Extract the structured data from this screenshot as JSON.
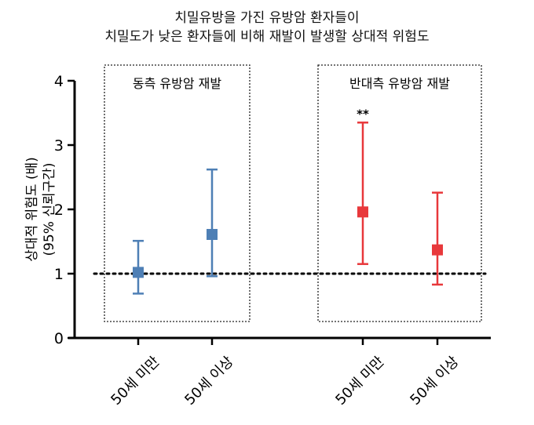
{
  "chart_data": {
    "type": "scatter",
    "title_lines": [
      "치밀유방을 가진 유방암 환자들이",
      "치밀도가 낮은 환자들에 비해 재발이 발생할 상대적 위험도"
    ],
    "ylabel_lines": [
      "상대적 위험도 (배)",
      "(95% 신뢰구간)"
    ],
    "ylim": [
      0,
      4
    ],
    "yticks": [
      "0",
      "1",
      "2",
      "3",
      "4"
    ],
    "reference_line": 1,
    "categories": [
      "50세 미만",
      "50세 이상",
      "50세 미만",
      "50세 이상"
    ],
    "panels": [
      {
        "label": "동측 유방암 재발",
        "color": "#4e7fb5",
        "points": [
          {
            "category": "50세 미만",
            "estimate": 1.02,
            "lower": 0.69,
            "upper": 1.51,
            "annotation": ""
          },
          {
            "category": "50세 이상",
            "estimate": 1.61,
            "lower": 0.96,
            "upper": 2.62,
            "annotation": ""
          }
        ]
      },
      {
        "label": "반대측 유방암 재발",
        "color": "#e8383b",
        "points": [
          {
            "category": "50세 미만",
            "estimate": 1.96,
            "lower": 1.15,
            "upper": 3.35,
            "annotation": "**"
          },
          {
            "category": "50세 이상",
            "estimate": 1.37,
            "lower": 0.83,
            "upper": 2.26,
            "annotation": ""
          }
        ]
      }
    ],
    "grid": false,
    "legend": "none"
  }
}
